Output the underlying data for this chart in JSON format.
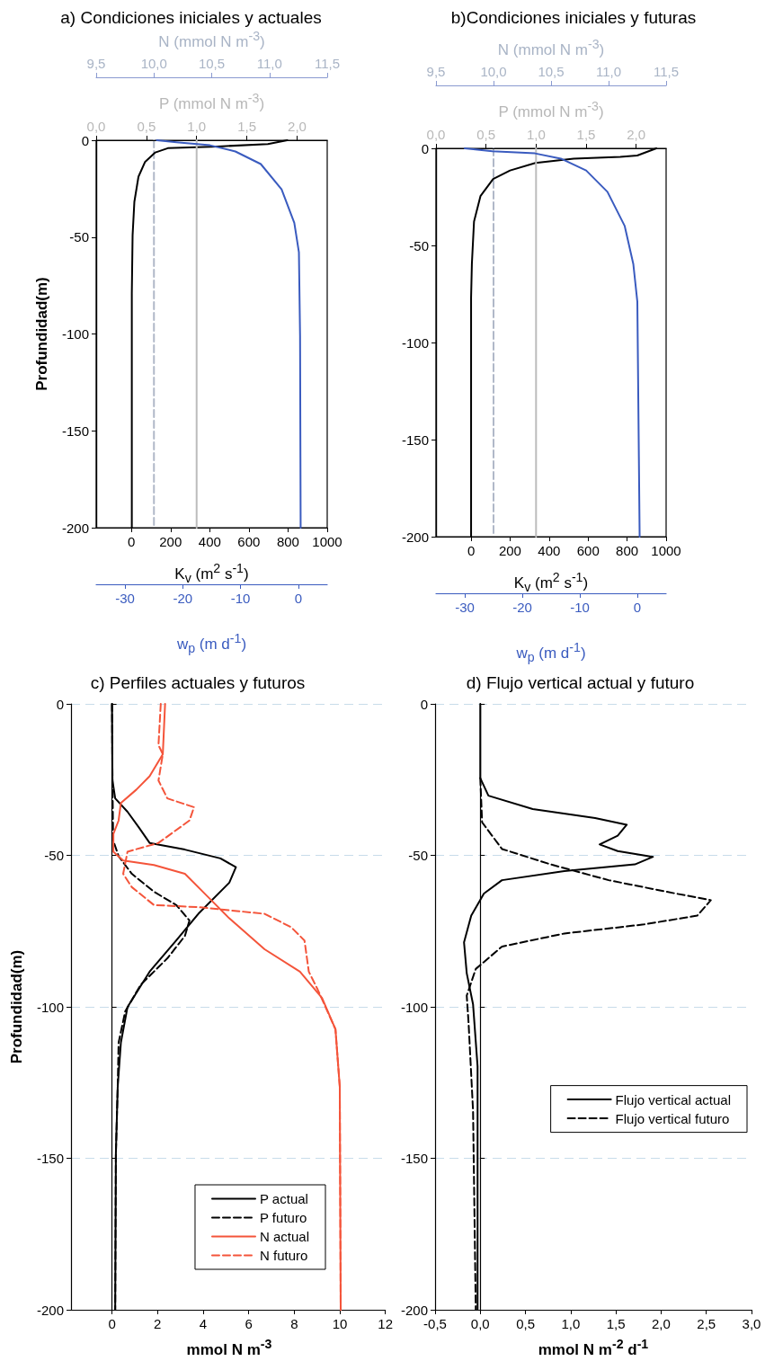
{
  "chart_data": [
    {
      "type": "line",
      "title": "a) Condiciones iniciales y actuales",
      "ylabel": "Profundidad(m)",
      "xlabel": "K$_{v}$ (m$^{2}$ s$^{-1}$)",
      "x2label": "N (mmol N m$^{-3}$)",
      "marker": "none",
      "xlim": [
        -180,
        1000
      ],
      "xticks": [
        0,
        200,
        400,
        600,
        800,
        1000
      ],
      "x2lim": [
        9.5,
        11.5
      ],
      "x2ticks": [
        {
          "value": 9.5,
          "label": "9,5"
        },
        {
          "value": 10,
          "label": "10,0"
        },
        {
          "value": 10.5,
          "label": "10,5"
        },
        {
          "value": 11,
          "label": "11,0"
        },
        {
          "value": 11.5,
          "label": "11,5"
        }
      ],
      "ylim": [
        -200,
        0
      ],
      "yticks": [
        -200,
        -150,
        -100,
        -50,
        0
      ],
      "series": [
        {
          "color": "#b0b8c8",
          "axis": "x2",
          "line_style": "dashed",
          "x": [
            10,
            10,
            10,
            10,
            10
          ],
          "values": [
            0,
            -50,
            -100,
            -150,
            -200
          ]
        },
        {
          "color": "#000000",
          "line_style": "solid",
          "x": [
            796,
            697,
            444,
            186,
            122,
            69,
            36,
            15,
            6,
            2,
            2
          ],
          "values": [
            0,
            -2,
            -3.2,
            -4.1,
            -6.3,
            -11.3,
            -18.8,
            -31.8,
            -49,
            -79,
            -200
          ]
        }
      ]
    },
    {
      "type": "line",
      "xlabel": "w$_{p}$ (m d$^{-1}$)",
      "x2label": "P (mmol N m$^{-3}$)",
      "marker": "none",
      "tick_labels": "x",
      "xlim": [
        -35,
        5
      ],
      "xticks": [
        -30,
        -20,
        -10,
        0
      ],
      "x2lim": [
        0,
        2.3
      ],
      "x2ticks": [
        {
          "value": 0,
          "label": "0,0"
        },
        {
          "value": 0.5,
          "label": "0,5"
        },
        {
          "value": 1,
          "label": "1,0"
        },
        {
          "value": 1.5,
          "label": "1,5"
        },
        {
          "value": 2,
          "label": "2,0"
        }
      ],
      "ylim": [
        -200,
        0
      ],
      "series": [
        {
          "color": "#bcbcbc",
          "axis": "x2",
          "line_style": "solid",
          "x": [
            1,
            1,
            1,
            1,
            1
          ],
          "values": [
            0,
            -50,
            -100,
            -150,
            -200
          ]
        },
        {
          "color": "#3a5bbf",
          "line_style": "solid",
          "x": [
            -24.5,
            -21.1,
            -15.3,
            -10.9,
            -6.5,
            -2.9,
            -0.7,
            0.1,
            0.3,
            0.4
          ],
          "values": [
            0,
            -1,
            -2.6,
            -5.8,
            -12.3,
            -25.3,
            -42.6,
            -57.8,
            -101,
            -200
          ]
        }
      ]
    },
    {
      "type": "line",
      "title": "b)Condiciones iniciales y futuras",
      "xlabel": "K$_{v}$ (m$^{2}$ s$^{-1}$)",
      "x2label": "N (mmol N m$^{-3}$)",
      "marker": "none",
      "xlim": [
        -180,
        1000
      ],
      "xticks": [
        0,
        200,
        400,
        600,
        800,
        1000
      ],
      "x2lim": [
        9.5,
        11.5
      ],
      "x2ticks": [
        {
          "value": 9.5,
          "label": "9,5"
        },
        {
          "value": 10,
          "label": "10,0"
        },
        {
          "value": 10.5,
          "label": "10,5"
        },
        {
          "value": 11,
          "label": "11,0"
        },
        {
          "value": 11.5,
          "label": "11,5"
        }
      ],
      "ylim": [
        -200,
        0
      ],
      "yticks": [
        -200,
        -150,
        -100,
        -50,
        0
      ],
      "series": [
        {
          "color": "#b0b8c8",
          "axis": "x2",
          "line_style": "dashed",
          "x": [
            10,
            10,
            10,
            10,
            10
          ],
          "values": [
            0,
            -50,
            -100,
            -150,
            -200
          ]
        },
        {
          "color": "#000000",
          "line_style": "solid",
          "x": [
            950,
            852,
            765,
            526,
            330,
            200,
            113,
            48,
            15,
            4,
            0,
            0
          ],
          "values": [
            0,
            -3.7,
            -4.4,
            -5.3,
            -7.5,
            -11.4,
            -15.8,
            -24.6,
            -37.7,
            -59.6,
            -77,
            -200
          ]
        }
      ]
    },
    {
      "type": "line",
      "xlabel": "w$_{p}$ (m d$^{-1}$)",
      "x2label": "P (mmol N m$^{-3}$)",
      "marker": "none",
      "tick_labels": "x",
      "xlim": [
        -35,
        5
      ],
      "xticks": [
        -30,
        -20,
        -10,
        0
      ],
      "x2lim": [
        0,
        2.3
      ],
      "x2ticks": [
        {
          "value": 0,
          "label": "0,0"
        },
        {
          "value": 0.5,
          "label": "0,5"
        },
        {
          "value": 1,
          "label": "1,0"
        },
        {
          "value": 1.5,
          "label": "1,5"
        },
        {
          "value": 2,
          "label": "2,0"
        }
      ],
      "ylim": [
        -200,
        0
      ],
      "series": [
        {
          "color": "#bcbcbc",
          "axis": "x2",
          "line_style": "solid",
          "x": [
            1,
            1,
            1,
            1,
            1
          ],
          "values": [
            0,
            -50,
            -100,
            -150,
            -200
          ]
        },
        {
          "color": "#3a5bbf",
          "line_style": "solid",
          "x": [
            -30,
            -25.2,
            -17.8,
            -13.3,
            -8.9,
            -5.2,
            -2.2,
            -0.7,
            0,
            0.4
          ],
          "values": [
            0,
            -1.5,
            -2.6,
            -5.3,
            -11.4,
            -22.4,
            -40,
            -59.6,
            -79,
            -200
          ]
        }
      ]
    },
    {
      "type": "line",
      "title": "c) Perfiles actuales y futuros",
      "ylabel": "Profundidad(m)",
      "xlabel": "mmol N m$^{-3}$",
      "marker": "none",
      "grid": "y",
      "legend": "bottom right",
      "xlim": [
        -1.8,
        12
      ],
      "xticks": [
        0,
        2,
        4,
        6,
        8,
        10,
        12
      ],
      "ylim": [
        -200,
        0
      ],
      "yticks": [
        -200,
        -150,
        -100,
        -50,
        0
      ],
      "series": [
        {
          "name": "P actual",
          "color": "#000000",
          "line_style": "solid",
          "x": [
            0,
            0.02,
            0.14,
            0.68,
            1.17,
            1.65,
            3.2,
            4.76,
            5.44,
            5.15,
            3.79,
            2.82,
            1.65,
            0.68,
            0.39,
            0.25,
            0.17,
            0.14
          ],
          "values": [
            0,
            -25.3,
            -31.2,
            -35.6,
            -40.7,
            -45.9,
            -48.1,
            -51,
            -53.9,
            -59,
            -69.3,
            -78.1,
            -88.4,
            -100.1,
            -111.8,
            -126.4,
            -148.4,
            -200
          ]
        },
        {
          "name": "P futuro",
          "color": "#000000",
          "line_style": "dashed",
          "x": [
            0,
            0.02,
            0.05,
            0.29,
            0.87,
            1.84,
            2.82,
            3.4,
            3.2,
            2.43,
            1.26,
            0.58,
            0.29,
            0.25,
            0.17,
            0.14
          ],
          "values": [
            0,
            -25.3,
            -45,
            -50.3,
            -56.1,
            -62,
            -66.4,
            -71.5,
            -76.6,
            -84,
            -92.7,
            -101.5,
            -111.8,
            -126.4,
            -148.4,
            -200
          ]
        },
        {
          "name": "N actual",
          "color": "#f4543a",
          "line_style": "solid",
          "x": [
            2.33,
            2.23,
            1.65,
            1.07,
            0.39,
            0.29,
            0.06,
            0.06,
            0.49,
            1.84,
            3.2,
            4.17,
            5.15,
            6.7,
            8.25,
            9.22,
            9.81,
            10,
            10.04
          ],
          "values": [
            0,
            -16.6,
            -23.9,
            -28.3,
            -32.7,
            -38.5,
            -42.9,
            -48.8,
            -51.7,
            -53.2,
            -56.1,
            -63.4,
            -70.8,
            -81,
            -88.4,
            -97.1,
            -107.4,
            -126.4,
            -200
          ]
        },
        {
          "name": "N futuro",
          "color": "#f4543a",
          "line_style": "dashed",
          "x": [
            2.14,
            2.04,
            2.23,
            2.04,
            2.43,
            3.6,
            3.4,
            2.04,
            0.68,
            0.49,
            0.87,
            1.84,
            3.79,
            6.7,
            7.86,
            8.45,
            8.64,
            9.03,
            9.81,
            10,
            10.04
          ],
          "values": [
            0,
            -13.6,
            -16.6,
            -25.3,
            -31.2,
            -34.1,
            -38.5,
            -45.9,
            -48.8,
            -56.1,
            -60.5,
            -66.4,
            -67.1,
            -69.3,
            -73.7,
            -78.1,
            -88.4,
            -94.3,
            -107.4,
            -126.4,
            -200
          ]
        }
      ]
    },
    {
      "type": "line",
      "title": "d) Flujo vertical actual y futuro",
      "xlabel": "mmol N m$^{-2}$ d$^{-1}$",
      "marker": "none",
      "grid": "y",
      "legend": "right",
      "xlim": [
        -0.5,
        3
      ],
      "xticks": [
        {
          "value": -0.5,
          "label": "-0,5"
        },
        {
          "value": 0,
          "label": "0,0"
        },
        {
          "value": 0.5,
          "label": "0,5"
        },
        {
          "value": 1,
          "label": "1,0"
        },
        {
          "value": 1.5,
          "label": "1,5"
        },
        {
          "value": 2,
          "label": "2,0"
        },
        {
          "value": 2.5,
          "label": "2,5"
        },
        {
          "value": 3,
          "label": "3,0"
        }
      ],
      "ylim": [
        -200,
        0
      ],
      "yticks": [
        -200,
        -150,
        -100,
        -50,
        0
      ],
      "series": [
        {
          "name": "Flujo vertical actual",
          "color": "#000000",
          "line_style": "solid",
          "x": [
            0,
            0,
            0.09,
            0.58,
            1.27,
            1.62,
            1.52,
            1.32,
            1.52,
            1.91,
            1.71,
            0.93,
            0.24,
            0.04,
            -0.1,
            -0.18,
            -0.15,
            -0.08,
            -0.03,
            -0.03
          ],
          "values": [
            0,
            -24.5,
            -30.3,
            -34.7,
            -37.7,
            -39.9,
            -43.5,
            -46.4,
            -48.6,
            -50.5,
            -53,
            -55.2,
            -58.2,
            -62.6,
            -69.9,
            -78.7,
            -88.9,
            -99.2,
            -119.7,
            -200
          ]
        },
        {
          "name": "Flujo vertical futuro",
          "color": "#000000",
          "line_style": "dashed",
          "x": [
            0,
            0.02,
            0.24,
            0.78,
            1.42,
            2.16,
            2.55,
            2.4,
            1.81,
            0.93,
            0.24,
            -0.05,
            -0.15,
            -0.13,
            -0.08,
            -0.05
          ],
          "values": [
            -24.5,
            -39.1,
            -47.9,
            -53,
            -58.2,
            -62.6,
            -64.8,
            -69.9,
            -72.8,
            -75.8,
            -80.1,
            -87.5,
            -96.3,
            -105.1,
            -134.4,
            -200
          ]
        }
      ]
    }
  ]
}
